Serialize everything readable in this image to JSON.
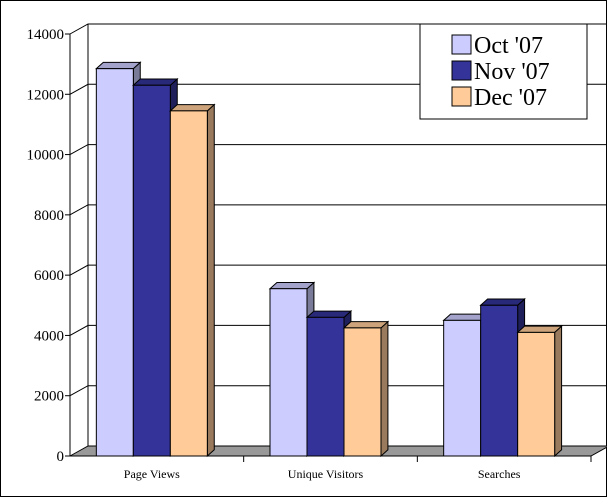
{
  "chart_data": {
    "type": "bar",
    "title": "",
    "xlabel": "",
    "ylabel": "",
    "categories": [
      "Page Views",
      "Unique Visitors",
      "Searches"
    ],
    "series": [
      {
        "name": "Oct '07",
        "values": [
          12850,
          5550,
          4500
        ],
        "color": "#ccccff"
      },
      {
        "name": "Nov '07",
        "values": [
          12300,
          4600,
          5000
        ],
        "color": "#333399"
      },
      {
        "name": "Dec '07",
        "values": [
          11450,
          4250,
          4100
        ],
        "color": "#ffcc99"
      }
    ],
    "ylim": [
      0,
      14000
    ],
    "yticks": [
      0,
      2000,
      4000,
      6000,
      8000,
      10000,
      12000,
      14000
    ],
    "grid": true,
    "legend": "top-right",
    "floor_color": "#999999"
  }
}
